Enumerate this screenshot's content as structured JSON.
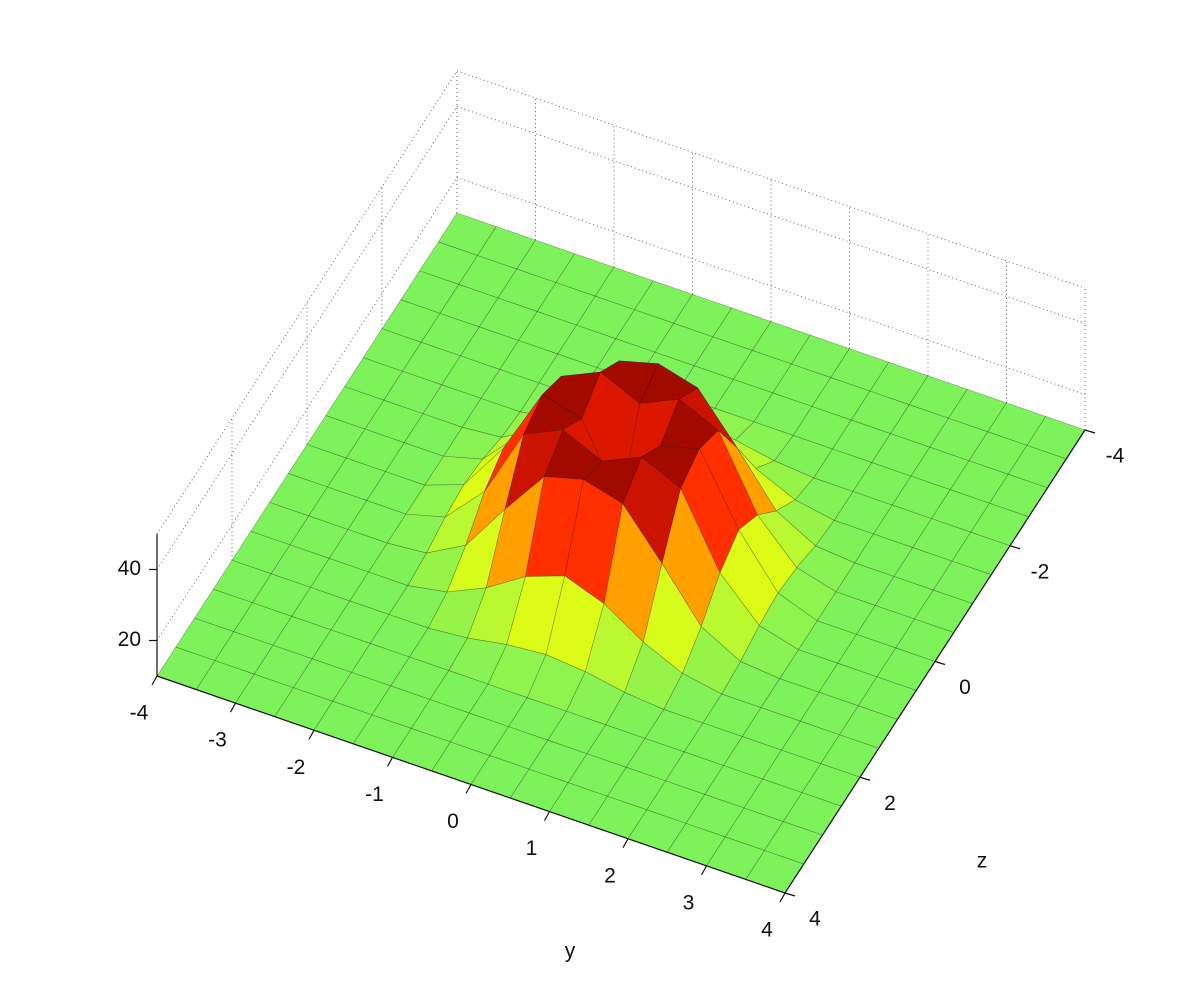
{
  "chart_data": {
    "type": "surface",
    "xlabel": "y",
    "ylabel": "z",
    "x": [
      -4,
      -3.5,
      -3,
      -2.5,
      -2,
      -1.5,
      -1,
      -0.5,
      0,
      0.5,
      1,
      1.5,
      2,
      2.5,
      3,
      3.5,
      4
    ],
    "y": [
      -4,
      -3.5,
      -3,
      -2.5,
      -2,
      -1.5,
      -1,
      -0.5,
      0,
      0.5,
      1,
      1.5,
      2,
      2.5,
      3,
      3.5,
      4
    ],
    "values": [
      [
        10,
        10,
        10,
        10,
        10,
        10,
        10,
        10,
        10,
        10,
        10,
        10,
        10,
        10,
        10,
        10,
        10
      ],
      [
        10,
        10,
        10,
        10,
        10,
        10,
        10,
        10,
        10,
        10,
        10,
        10,
        10,
        10,
        10,
        10,
        10
      ],
      [
        10,
        10,
        10,
        10,
        10,
        10,
        10,
        10,
        10,
        10,
        10,
        10,
        10,
        10,
        10,
        10,
        10
      ],
      [
        10,
        10,
        10,
        10,
        10,
        10,
        10,
        10,
        10,
        10,
        10,
        10,
        10,
        10,
        10,
        10,
        10
      ],
      [
        10,
        10,
        10,
        10,
        10,
        10,
        11,
        13,
        14,
        13,
        11,
        10,
        10,
        10,
        10,
        10,
        10
      ],
      [
        10,
        10,
        10,
        10,
        10,
        12,
        17,
        24,
        28,
        24,
        17,
        12,
        10,
        10,
        10,
        10,
        10
      ],
      [
        10,
        10,
        10,
        10,
        11,
        17,
        31,
        44,
        47,
        44,
        31,
        17,
        11,
        10,
        10,
        10,
        10
      ],
      [
        10,
        10,
        10,
        10,
        13,
        24,
        44,
        49,
        44,
        49,
        44,
        24,
        13,
        10,
        10,
        10,
        10
      ],
      [
        10,
        10,
        10,
        10,
        14,
        28,
        47,
        44,
        24,
        44,
        47,
        28,
        14,
        10,
        10,
        10,
        10
      ],
      [
        10,
        10,
        10,
        10,
        13,
        24,
        44,
        49,
        44,
        49,
        44,
        24,
        13,
        10,
        10,
        10,
        10
      ],
      [
        10,
        10,
        10,
        10,
        11,
        17,
        31,
        44,
        47,
        44,
        31,
        17,
        11,
        10,
        10,
        10,
        10
      ],
      [
        10,
        10,
        10,
        10,
        10,
        12,
        17,
        24,
        28,
        24,
        17,
        12,
        10,
        10,
        10,
        10,
        10
      ],
      [
        10,
        10,
        10,
        10,
        10,
        10,
        11,
        13,
        14,
        13,
        11,
        10,
        10,
        10,
        10,
        10,
        10
      ],
      [
        10,
        10,
        10,
        10,
        10,
        10,
        10,
        10,
        10,
        10,
        10,
        10,
        10,
        10,
        10,
        10,
        10
      ],
      [
        10,
        10,
        10,
        10,
        10,
        10,
        10,
        10,
        10,
        10,
        10,
        10,
        10,
        10,
        10,
        10,
        10
      ],
      [
        10,
        10,
        10,
        10,
        10,
        10,
        10,
        10,
        10,
        10,
        10,
        10,
        10,
        10,
        10,
        10,
        10
      ],
      [
        10,
        10,
        10,
        10,
        10,
        10,
        10,
        10,
        10,
        10,
        10,
        10,
        10,
        10,
        10,
        10,
        10
      ]
    ],
    "xlim": [
      -4,
      4
    ],
    "ylim": [
      -4,
      4
    ],
    "zlim": [
      10,
      50
    ],
    "xticks": [
      -4,
      -3,
      -2,
      -1,
      0,
      1,
      2,
      3,
      4
    ],
    "yticks": [
      -4,
      -2,
      0,
      2,
      4
    ],
    "zticks": [
      20,
      40
    ],
    "grid": true,
    "colormap": [
      "#7ef25a",
      "#ffff00",
      "#ff2000",
      "#7a0000"
    ]
  }
}
